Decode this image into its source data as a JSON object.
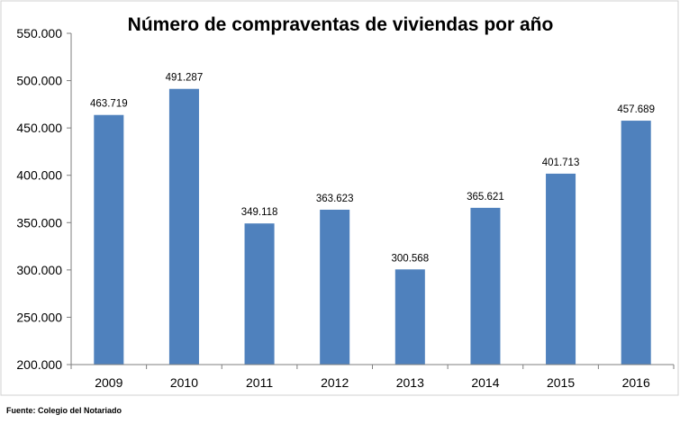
{
  "chart_data": {
    "type": "bar",
    "title": "Número de compraventas de viviendas por año",
    "categories": [
      "2009",
      "2010",
      "2011",
      "2012",
      "2013",
      "2014",
      "2015",
      "2016"
    ],
    "values": [
      463719,
      491287,
      349118,
      363623,
      300568,
      365621,
      401713,
      457689
    ],
    "data_labels": [
      "463.719",
      "491.287",
      "349.118",
      "363.623",
      "300.568",
      "365.621",
      "401.713",
      "457.689"
    ],
    "ylim": [
      200000,
      550000
    ],
    "y_ticks": [
      200000,
      250000,
      300000,
      350000,
      400000,
      450000,
      500000,
      550000
    ],
    "y_tick_labels": [
      "200.000",
      "250.000",
      "300.000",
      "350.000",
      "400.000",
      "450.000",
      "500.000",
      "550.000"
    ],
    "xlabel": "",
    "ylabel": "",
    "grid": false,
    "legend": false,
    "bar_color": "#4f81bd",
    "source": "Fuente: Colegio del Notariado"
  }
}
